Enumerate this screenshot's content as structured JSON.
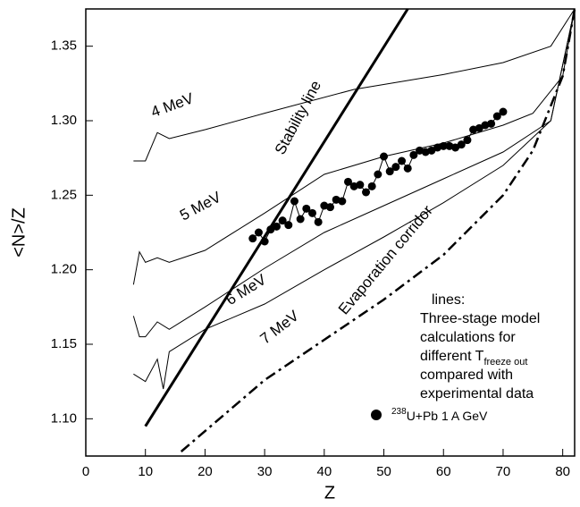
{
  "chart_data": {
    "type": "line",
    "xlabel": "Z",
    "ylabel": "<N>/Z",
    "xlim": [
      0,
      82
    ],
    "ylim": [
      1.075,
      1.375
    ],
    "xticks": [
      0,
      10,
      20,
      30,
      40,
      50,
      60,
      70,
      80
    ],
    "yticks": [
      {
        "value": 1.1,
        "label": "1.10"
      },
      1.15,
      {
        "value": 1.2,
        "label": "1.20"
      },
      1.25,
      {
        "value": 1.3,
        "label": "1.30"
      },
      1.35
    ],
    "series": [
      {
        "name": "4 MeV",
        "color": "#000",
        "style": "solid",
        "x": [
          8,
          10,
          12,
          14,
          20,
          30,
          45,
          60,
          70,
          78,
          82
        ],
        "values": [
          1.273,
          1.273,
          1.292,
          1.288,
          1.294,
          1.305,
          1.321,
          1.331,
          1.339,
          1.35,
          1.375
        ]
      },
      {
        "name": "5 MeV",
        "color": "#000",
        "style": "solid",
        "x": [
          8,
          9,
          10,
          12,
          14,
          20,
          30,
          40,
          50,
          60,
          70,
          75,
          80,
          82
        ],
        "values": [
          1.19,
          1.212,
          1.205,
          1.208,
          1.205,
          1.213,
          1.238,
          1.264,
          1.276,
          1.285,
          1.297,
          1.305,
          1.33,
          1.375
        ]
      },
      {
        "name": "6 MeV",
        "color": "#000",
        "style": "solid",
        "x": [
          8,
          9,
          10,
          12,
          14,
          20,
          30,
          40,
          50,
          60,
          70,
          78,
          82
        ],
        "values": [
          1.169,
          1.155,
          1.155,
          1.165,
          1.16,
          1.175,
          1.201,
          1.225,
          1.243,
          1.261,
          1.279,
          1.3,
          1.375
        ]
      },
      {
        "name": "7 MeV",
        "color": "#000",
        "style": "solid",
        "x": [
          8,
          10,
          12,
          13,
          14,
          20,
          30,
          40,
          50,
          60,
          70,
          78,
          82
        ],
        "values": [
          1.13,
          1.125,
          1.14,
          1.12,
          1.145,
          1.16,
          1.177,
          1.2,
          1.222,
          1.245,
          1.27,
          1.3,
          1.375
        ]
      },
      {
        "name": "Stability line",
        "color": "#000",
        "style": "thick",
        "x": [
          10,
          54
        ],
        "values": [
          1.095,
          1.375
        ]
      },
      {
        "name": "Evaporation corridor",
        "color": "#000",
        "style": "dashdot",
        "x": [
          16,
          30,
          40,
          50,
          60,
          70,
          75,
          80,
          82
        ],
        "values": [
          1.078,
          1.126,
          1.153,
          1.18,
          1.21,
          1.25,
          1.28,
          1.33,
          1.375
        ]
      },
      {
        "name": "U+Pb 1 A GeV",
        "name_sup": "238",
        "color": "#000",
        "style": "markers",
        "x": [
          28,
          29,
          30,
          31,
          32,
          33,
          34,
          35,
          36,
          37,
          38,
          39,
          40,
          41,
          42,
          43,
          44,
          45,
          46,
          47,
          48,
          49,
          50,
          51,
          52,
          53,
          54,
          55,
          56,
          57,
          58,
          59,
          60,
          61,
          62,
          63,
          64,
          65,
          66,
          67,
          68,
          69,
          70
        ],
        "values": [
          1.221,
          1.225,
          1.219,
          1.227,
          1.229,
          1.233,
          1.23,
          1.246,
          1.234,
          1.241,
          1.238,
          1.232,
          1.243,
          1.242,
          1.247,
          1.246,
          1.259,
          1.256,
          1.257,
          1.252,
          1.256,
          1.264,
          1.276,
          1.266,
          1.269,
          1.273,
          1.268,
          1.277,
          1.28,
          1.279,
          1.28,
          1.282,
          1.283,
          1.283,
          1.282,
          1.284,
          1.287,
          1.294,
          1.295,
          1.297,
          1.298,
          1.303,
          1.306
        ]
      }
    ],
    "note_lines": [
      "lines:",
      "Three-stage model",
      "calculations for",
      "different T",
      "compared with",
      "experimental data"
    ],
    "note_subscript": "freeze out"
  }
}
